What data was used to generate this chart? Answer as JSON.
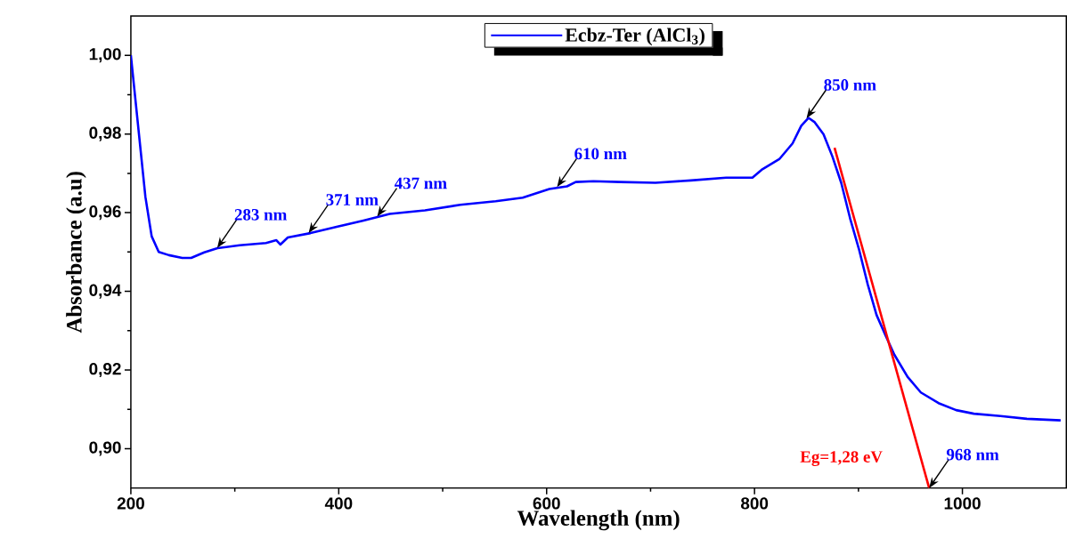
{
  "chart_data": {
    "type": "line",
    "xlabel": "Wavelength (nm)",
    "ylabel": "Absorbance (a.u)",
    "xlim": [
      200,
      1100
    ],
    "ylim": [
      0.89,
      1.01
    ],
    "xticks": [
      200,
      400,
      600,
      800,
      1000
    ],
    "yticks": [
      {
        "value": 0.9,
        "label": "0,90"
      },
      {
        "value": 0.92,
        "label": "0,92"
      },
      {
        "value": 0.94,
        "label": "0,94"
      },
      {
        "value": 0.96,
        "label": "0,96"
      },
      {
        "value": 0.98,
        "label": "0,98"
      },
      {
        "value": 1.0,
        "label": "1,00"
      }
    ],
    "legend": "top",
    "grid": false,
    "marker": "none",
    "line_style": "solid",
    "series": [
      {
        "name": "Ecbz-Ter (AlCl$_{3}$)",
        "color": "#0000ff",
        "x": [
          200,
          207,
          214,
          220,
          226.8,
          236.6,
          249.4,
          258,
          270.6,
          283.4,
          304.7,
          330,
          340,
          343.8,
          351,
          372.8,
          398,
          423.8,
          449,
          483,
          517,
          551,
          577,
          602.6,
          619.6,
          628,
          645,
          670.6,
          704.7,
          738.7,
          772.8,
          798,
          806.8,
          823.8,
          836.6,
          845,
          851.9,
          857.9,
          866.4,
          874.9,
          883.4,
          891.9,
          900.4,
          908.9,
          917.4,
          925.9,
          934.5,
          947.2,
          960,
          977,
          994,
          1011,
          1036.6,
          1062,
          1094.5
        ],
        "values": [
          1.0,
          0.982,
          0.964,
          0.954,
          0.95,
          0.9492,
          0.9485,
          0.9485,
          0.9499,
          0.951,
          0.9517,
          0.9523,
          0.953,
          0.9519,
          0.9537,
          0.9548,
          0.9564,
          0.958,
          0.9597,
          0.9606,
          0.962,
          0.9629,
          0.9638,
          0.966,
          0.9667,
          0.9678,
          0.968,
          0.9678,
          0.9676,
          0.9682,
          0.9689,
          0.9689,
          0.9709,
          0.9736,
          0.9776,
          0.9821,
          0.9841,
          0.983,
          0.9799,
          0.9743,
          0.9676,
          0.9586,
          0.9508,
          0.9418,
          0.934,
          0.9289,
          0.9239,
          0.9183,
          0.9143,
          0.9116,
          0.9098,
          0.9089,
          0.9083,
          0.9076,
          0.9072
        ]
      },
      {
        "type": "line",
        "color": "#ff0000",
        "x": [
          877,
          968
        ],
        "values": [
          0.9765,
          0.89
        ]
      }
    ],
    "annotations": [
      {
        "text": "283 nm",
        "x": 283,
        "y": 0.951
      },
      {
        "text": "371 nm",
        "x": 371,
        "y": 0.9548
      },
      {
        "text": "437 nm",
        "x": 437,
        "y": 0.959
      },
      {
        "text": "610 nm",
        "x": 610,
        "y": 0.9665
      },
      {
        "text": "850 nm",
        "x": 850,
        "y": 0.984
      },
      {
        "text": "968 nm",
        "x": 968,
        "y": 0.89
      },
      "Eg=1,28 eV"
    ]
  }
}
